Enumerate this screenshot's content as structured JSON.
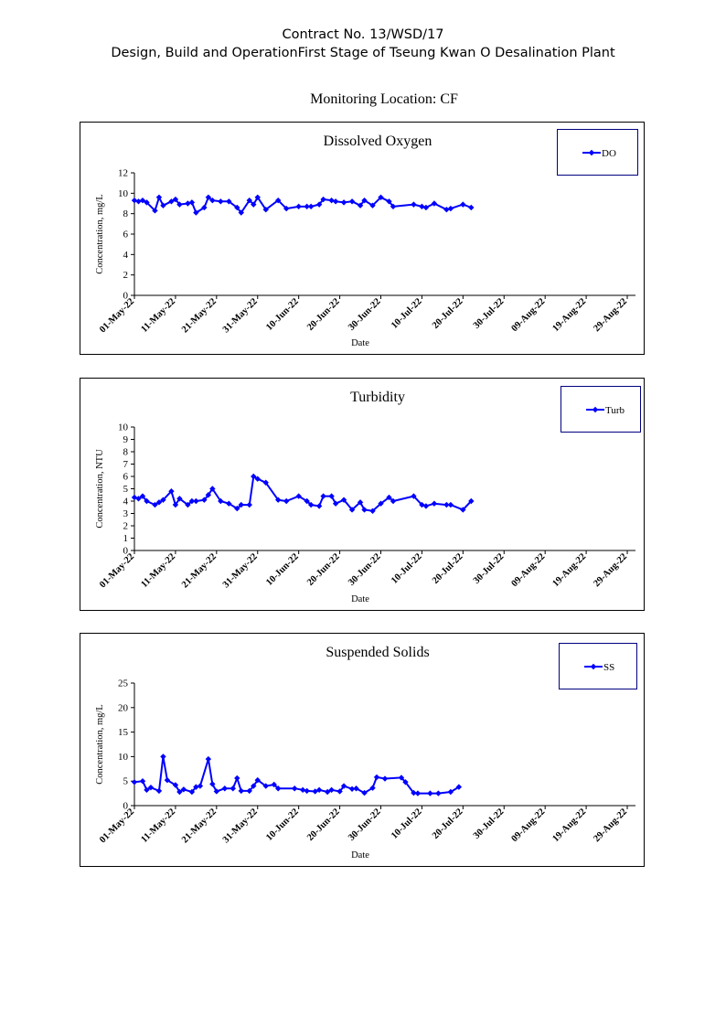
{
  "header": {
    "line1": "Contract No. 13/WSD/17",
    "line2": "Design, Build and OperationFirst Stage  of Tseung Kwan O Desalination Plant"
  },
  "location_title": "Monitoring Location: CF",
  "colors": {
    "series": "#0000ff",
    "frame": "#000000",
    "legend_border": "#000080"
  },
  "chart_data": [
    {
      "type": "line",
      "title": "Dissolved Oxygen",
      "xlabel": "Date",
      "ylabel": "Concentration, mg/L",
      "ylim": [
        0,
        12
      ],
      "yticks": [
        0,
        2,
        4,
        6,
        8,
        10,
        12
      ],
      "xlim": [
        "01-May-22",
        "31-Aug-22"
      ],
      "xtick_labels": [
        "01-May-22",
        "11-May-22",
        "21-May-22",
        "31-May-22",
        "10-Jun-22",
        "20-Jun-22",
        "30-Jun-22",
        "10-Jul-22",
        "20-Jul-22",
        "30-Jul-22",
        "09-Aug-22",
        "19-Aug-22",
        "29-Aug-22"
      ],
      "grid": false,
      "legend": "top-right",
      "series": [
        {
          "name": "DO",
          "points": [
            [
              "2022-05-01",
              9.3
            ],
            [
              "2022-05-02",
              9.2
            ],
            [
              "2022-05-03",
              9.3
            ],
            [
              "2022-05-04",
              9.1
            ],
            [
              "2022-05-06",
              8.3
            ],
            [
              "2022-05-07",
              9.6
            ],
            [
              "2022-05-08",
              8.8
            ],
            [
              "2022-05-10",
              9.2
            ],
            [
              "2022-05-11",
              9.4
            ],
            [
              "2022-05-12",
              8.9
            ],
            [
              "2022-05-14",
              9.0
            ],
            [
              "2022-05-15",
              9.1
            ],
            [
              "2022-05-16",
              8.1
            ],
            [
              "2022-05-18",
              8.6
            ],
            [
              "2022-05-19",
              9.6
            ],
            [
              "2022-05-20",
              9.3
            ],
            [
              "2022-05-22",
              9.2
            ],
            [
              "2022-05-24",
              9.2
            ],
            [
              "2022-05-26",
              8.6
            ],
            [
              "2022-05-27",
              8.1
            ],
            [
              "2022-05-29",
              9.3
            ],
            [
              "2022-05-30",
              8.9
            ],
            [
              "2022-05-31",
              9.6
            ],
            [
              "2022-06-02",
              8.4
            ],
            [
              "2022-06-05",
              9.3
            ],
            [
              "2022-06-07",
              8.5
            ],
            [
              "2022-06-10",
              8.7
            ],
            [
              "2022-06-12",
              8.7
            ],
            [
              "2022-06-13",
              8.7
            ],
            [
              "2022-06-15",
              8.9
            ],
            [
              "2022-06-16",
              9.4
            ],
            [
              "2022-06-18",
              9.3
            ],
            [
              "2022-06-19",
              9.2
            ],
            [
              "2022-06-21",
              9.1
            ],
            [
              "2022-06-23",
              9.2
            ],
            [
              "2022-06-25",
              8.8
            ],
            [
              "2022-06-26",
              9.3
            ],
            [
              "2022-06-28",
              8.8
            ],
            [
              "2022-06-30",
              9.6
            ],
            [
              "2022-07-02",
              9.2
            ],
            [
              "2022-07-03",
              8.7
            ],
            [
              "2022-07-08",
              8.9
            ],
            [
              "2022-07-10",
              8.7
            ],
            [
              "2022-07-11",
              8.6
            ],
            [
              "2022-07-13",
              9.0
            ],
            [
              "2022-07-16",
              8.4
            ],
            [
              "2022-07-17",
              8.5
            ],
            [
              "2022-07-20",
              8.9
            ],
            [
              "2022-07-22",
              8.6
            ]
          ]
        }
      ]
    },
    {
      "type": "line",
      "title": "Turbidity",
      "xlabel": "Date",
      "ylabel": "Concentration, NTU",
      "ylim": [
        0,
        10
      ],
      "yticks": [
        0,
        1,
        2,
        3,
        4,
        5,
        6,
        7,
        8,
        9,
        10
      ],
      "xlim": [
        "01-May-22",
        "31-Aug-22"
      ],
      "xtick_labels": [
        "01-May-22",
        "11-May-22",
        "21-May-22",
        "31-May-22",
        "10-Jun-22",
        "20-Jun-22",
        "30-Jun-22",
        "10-Jul-22",
        "20-Jul-22",
        "30-Jul-22",
        "09-Aug-22",
        "19-Aug-22",
        "29-Aug-22"
      ],
      "grid": false,
      "legend": "top-right",
      "series": [
        {
          "name": "Turb",
          "points": [
            [
              "2022-05-01",
              4.3
            ],
            [
              "2022-05-02",
              4.2
            ],
            [
              "2022-05-03",
              4.4
            ],
            [
              "2022-05-04",
              4.0
            ],
            [
              "2022-05-06",
              3.7
            ],
            [
              "2022-05-07",
              3.9
            ],
            [
              "2022-05-08",
              4.1
            ],
            [
              "2022-05-10",
              4.8
            ],
            [
              "2022-05-11",
              3.7
            ],
            [
              "2022-05-12",
              4.2
            ],
            [
              "2022-05-14",
              3.7
            ],
            [
              "2022-05-15",
              4.0
            ],
            [
              "2022-05-16",
              4.0
            ],
            [
              "2022-05-18",
              4.1
            ],
            [
              "2022-05-19",
              4.5
            ],
            [
              "2022-05-20",
              5.0
            ],
            [
              "2022-05-22",
              4.0
            ],
            [
              "2022-05-24",
              3.8
            ],
            [
              "2022-05-26",
              3.4
            ],
            [
              "2022-05-27",
              3.7
            ],
            [
              "2022-05-29",
              3.7
            ],
            [
              "2022-05-30",
              6.0
            ],
            [
              "2022-05-31",
              5.8
            ],
            [
              "2022-06-02",
              5.5
            ],
            [
              "2022-06-05",
              4.1
            ],
            [
              "2022-06-07",
              4.0
            ],
            [
              "2022-06-10",
              4.4
            ],
            [
              "2022-06-12",
              4.0
            ],
            [
              "2022-06-13",
              3.7
            ],
            [
              "2022-06-15",
              3.6
            ],
            [
              "2022-06-16",
              4.4
            ],
            [
              "2022-06-18",
              4.4
            ],
            [
              "2022-06-19",
              3.8
            ],
            [
              "2022-06-21",
              4.1
            ],
            [
              "2022-06-23",
              3.3
            ],
            [
              "2022-06-25",
              3.9
            ],
            [
              "2022-06-26",
              3.3
            ],
            [
              "2022-06-28",
              3.2
            ],
            [
              "2022-06-30",
              3.8
            ],
            [
              "2022-07-02",
              4.3
            ],
            [
              "2022-07-03",
              4.0
            ],
            [
              "2022-07-08",
              4.4
            ],
            [
              "2022-07-10",
              3.7
            ],
            [
              "2022-07-11",
              3.6
            ],
            [
              "2022-07-13",
              3.8
            ],
            [
              "2022-07-16",
              3.7
            ],
            [
              "2022-07-17",
              3.7
            ],
            [
              "2022-07-20",
              3.3
            ],
            [
              "2022-07-22",
              4.0
            ]
          ]
        }
      ]
    },
    {
      "type": "line",
      "title": "Suspended Solids",
      "xlabel": "Date",
      "ylabel": "Concentration, mg/L",
      "ylim": [
        0,
        25
      ],
      "yticks": [
        0,
        5,
        10,
        15,
        20,
        25
      ],
      "xlim": [
        "01-May-22",
        "31-Aug-22"
      ],
      "xtick_labels": [
        "01-May-22",
        "11-May-22",
        "21-May-22",
        "31-May-22",
        "10-Jun-22",
        "20-Jun-22",
        "30-Jun-22",
        "10-Jul-22",
        "20-Jul-22",
        "30-Jul-22",
        "09-Aug-22",
        "19-Aug-22",
        "29-Aug-22"
      ],
      "grid": false,
      "legend": "top-right",
      "series": [
        {
          "name": "SS",
          "points": [
            [
              "2022-05-01",
              4.8
            ],
            [
              "2022-05-03",
              5.0
            ],
            [
              "2022-05-04",
              3.2
            ],
            [
              "2022-05-05",
              3.7
            ],
            [
              "2022-05-07",
              3.0
            ],
            [
              "2022-05-08",
              10.0
            ],
            [
              "2022-05-09",
              5.2
            ],
            [
              "2022-05-11",
              4.2
            ],
            [
              "2022-05-12",
              2.8
            ],
            [
              "2022-05-13",
              3.3
            ],
            [
              "2022-05-15",
              2.8
            ],
            [
              "2022-05-16",
              3.8
            ],
            [
              "2022-05-17",
              4.0
            ],
            [
              "2022-05-19",
              9.5
            ],
            [
              "2022-05-20",
              4.4
            ],
            [
              "2022-05-21",
              2.9
            ],
            [
              "2022-05-23",
              3.5
            ],
            [
              "2022-05-25",
              3.5
            ],
            [
              "2022-05-26",
              5.6
            ],
            [
              "2022-05-27",
              3.0
            ],
            [
              "2022-05-29",
              3.0
            ],
            [
              "2022-05-30",
              4.0
            ],
            [
              "2022-05-31",
              5.2
            ],
            [
              "2022-06-02",
              4.0
            ],
            [
              "2022-06-04",
              4.3
            ],
            [
              "2022-06-05",
              3.5
            ],
            [
              "2022-06-09",
              3.5
            ],
            [
              "2022-06-11",
              3.2
            ],
            [
              "2022-06-12",
              3.0
            ],
            [
              "2022-06-14",
              2.9
            ],
            [
              "2022-06-15",
              3.2
            ],
            [
              "2022-06-17",
              2.8
            ],
            [
              "2022-06-18",
              3.2
            ],
            [
              "2022-06-20",
              2.9
            ],
            [
              "2022-06-21",
              4.0
            ],
            [
              "2022-06-23",
              3.4
            ],
            [
              "2022-06-24",
              3.5
            ],
            [
              "2022-06-26",
              2.6
            ],
            [
              "2022-06-28",
              3.6
            ],
            [
              "2022-06-29",
              5.8
            ],
            [
              "2022-07-01",
              5.5
            ],
            [
              "2022-07-05",
              5.7
            ],
            [
              "2022-07-06",
              4.8
            ],
            [
              "2022-07-08",
              2.6
            ],
            [
              "2022-07-09",
              2.5
            ],
            [
              "2022-07-12",
              2.5
            ],
            [
              "2022-07-14",
              2.5
            ],
            [
              "2022-07-17",
              2.8
            ],
            [
              "2022-07-19",
              3.8
            ]
          ]
        }
      ]
    }
  ]
}
